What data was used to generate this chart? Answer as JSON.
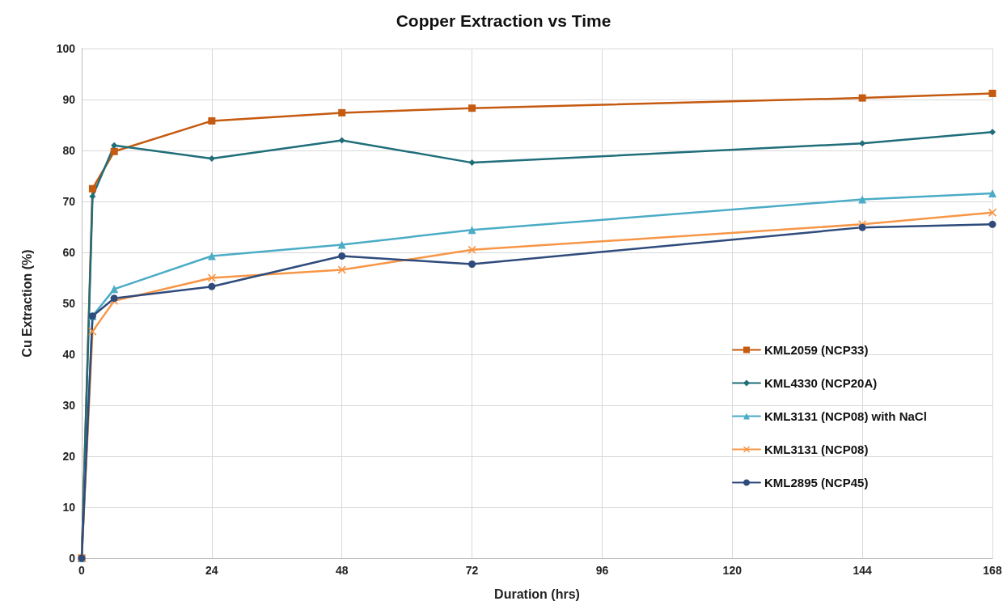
{
  "chart_data": {
    "type": "line",
    "title": "Copper Extraction vs Time",
    "xlabel": "Duration (hrs)",
    "ylabel": "Cu Extraction (%)",
    "x": [
      0,
      2,
      6,
      24,
      48,
      72,
      144,
      168
    ],
    "xlim": [
      0,
      168
    ],
    "xticks": [
      0,
      24,
      48,
      72,
      96,
      120,
      144,
      168
    ],
    "ylim": [
      0,
      100
    ],
    "yticks": [
      0,
      10,
      20,
      30,
      40,
      50,
      60,
      70,
      80,
      90,
      100
    ],
    "grid": true,
    "legend": "right",
    "line_style": "solid",
    "series": [
      {
        "name": "KML2059 (NCP33)",
        "color": "#c55a11",
        "marker": "square",
        "values": [
          0,
          72.5,
          79.8,
          85.8,
          87.4,
          88.3,
          90.3,
          91.2
        ]
      },
      {
        "name": "KML4330 (NCP20A)",
        "color": "#1f6e7a",
        "marker": "diamond",
        "values": [
          0,
          71,
          81,
          78.4,
          82,
          77.6,
          81.4,
          83.6
        ]
      },
      {
        "name": "KML3131 (NCP08) with NaCl",
        "color": "#4bacc6",
        "marker": "triangle",
        "values": [
          0,
          47.5,
          52.8,
          59.3,
          61.5,
          64.4,
          70.4,
          71.6
        ]
      },
      {
        "name": "KML3131 (NCP08)",
        "color": "#f79646",
        "marker": "cross",
        "values": [
          0,
          44.5,
          50.5,
          55,
          56.6,
          60.5,
          65.5,
          67.8
        ]
      },
      {
        "name": "KML2895 (NCP45)",
        "color": "#2f4b7c",
        "marker": "circle",
        "values": [
          0,
          47.5,
          51,
          53.3,
          59.3,
          57.7,
          64.9,
          65.5
        ]
      }
    ]
  }
}
